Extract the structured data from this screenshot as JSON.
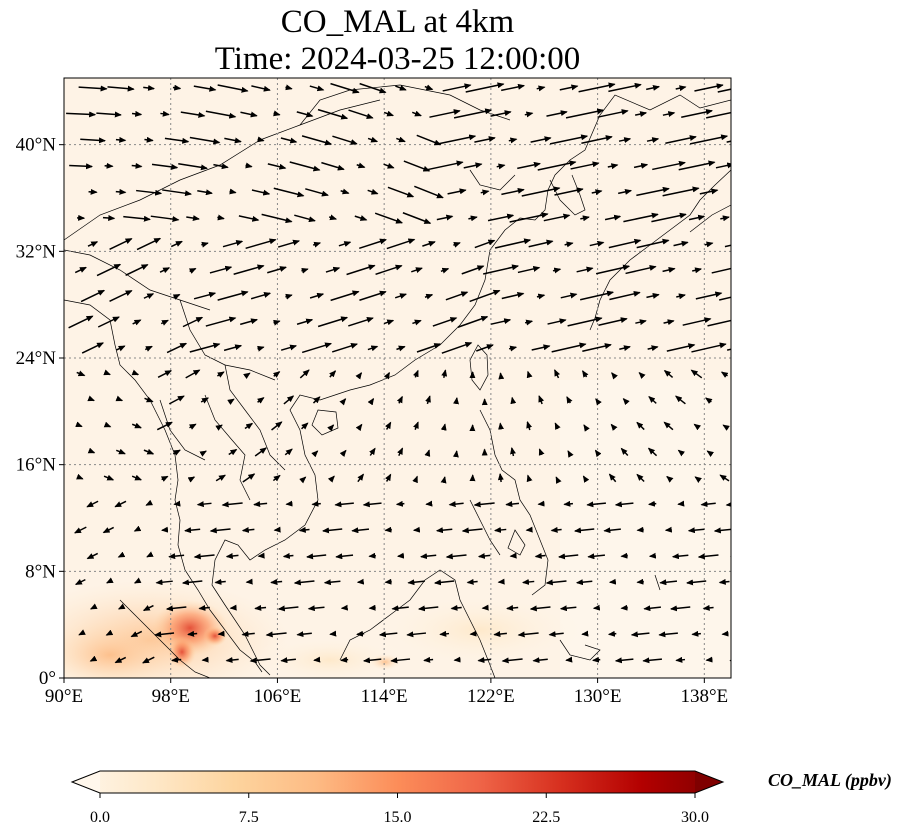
{
  "title_line1": "CO_MAL at 4km",
  "title_line2": "Time: 2024-03-25 12:00:00",
  "map": {
    "lon_range": [
      90,
      140
    ],
    "lat_range": [
      0,
      45
    ],
    "lon_ticks": [
      90,
      98,
      106,
      114,
      122,
      130,
      138
    ],
    "lat_ticks": [
      0,
      8,
      16,
      24,
      32,
      40
    ],
    "lon_tick_labels": [
      "90°E",
      "98°E",
      "106°E",
      "114°E",
      "122°E",
      "130°E",
      "138°E"
    ],
    "lat_tick_labels": [
      "0°",
      "8°N",
      "16°N",
      "24°N",
      "32°N",
      "40°N"
    ],
    "gridlines": true
  },
  "colorbar": {
    "title": "CO_MAL (ppbv)",
    "min": 0.0,
    "max": 30.0,
    "extend": "both",
    "ticks": [
      0.0,
      7.5,
      15.0,
      22.5,
      30.0
    ],
    "tick_labels": [
      "0.0",
      "7.5",
      "15.0",
      "22.5",
      "30.0"
    ],
    "colormap": "OrRd",
    "colors": [
      "#fff7ec",
      "#fee8c8",
      "#fdd49e",
      "#fdbb84",
      "#fc8d59",
      "#ef6548",
      "#d7301f",
      "#b30000",
      "#7f0000"
    ]
  }
}
